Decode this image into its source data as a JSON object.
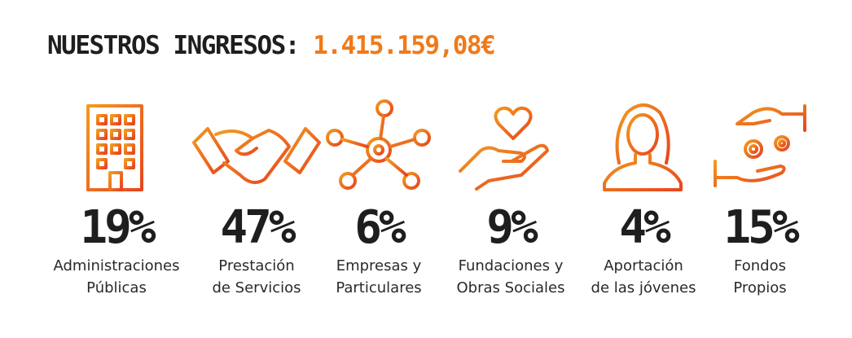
{
  "header": {
    "title": "NUESTROS INGRESOS:",
    "amount": "1.415.159,08€"
  },
  "items": [
    {
      "percent": "19%",
      "label": [
        "Administraciones",
        "Públicas"
      ]
    },
    {
      "percent": "47%",
      "label": [
        "Prestación",
        "de Servicios"
      ]
    },
    {
      "percent": "6%",
      "label": [
        "Empresas y",
        "Particulares"
      ]
    },
    {
      "percent": "9%",
      "label": [
        "Fundaciones y",
        "Obras Sociales"
      ]
    },
    {
      "percent": "4%",
      "label": [
        "Aportación",
        "de las jóvenes"
      ]
    },
    {
      "percent": "15%",
      "label": [
        "Fondos",
        "Propios"
      ]
    }
  ]
}
